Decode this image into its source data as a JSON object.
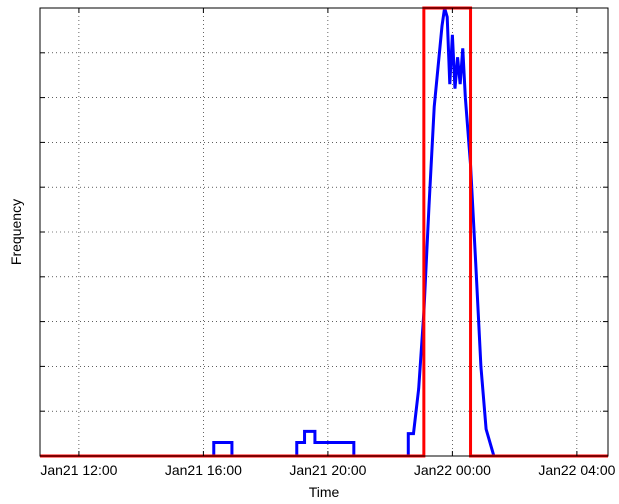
{
  "chart_data": {
    "type": "line",
    "title": "",
    "xlabel": "Time",
    "ylabel": "Frequency",
    "x_axis": {
      "ticks": [
        {
          "t": "2015-01-21T12:00",
          "label": "Jan21 12:00"
        },
        {
          "t": "2015-01-21T16:00",
          "label": "Jan21 16:00"
        },
        {
          "t": "2015-01-21T20:00",
          "label": "Jan21 20:00"
        },
        {
          "t": "2015-01-22T00:00",
          "label": "Jan22 00:00"
        },
        {
          "t": "2015-01-22T04:00",
          "label": "Jan22 04:00"
        }
      ],
      "range": [
        "2015-01-21T10:45",
        "2015-01-22T05:00"
      ]
    },
    "y_axis": {
      "range": [
        0,
        10
      ],
      "grid_levels": [
        1,
        2,
        3,
        4,
        5,
        6,
        7,
        8,
        9
      ],
      "tick_labels_shown": false
    },
    "grid": true,
    "series": [
      {
        "color": "#0000ff",
        "points": [
          {
            "t": "2015-01-21T10:45",
            "y": 0
          },
          {
            "t": "2015-01-21T16:20",
            "y": 0
          },
          {
            "t": "2015-01-21T16:20",
            "y": 0.3
          },
          {
            "t": "2015-01-21T16:55",
            "y": 0.3
          },
          {
            "t": "2015-01-21T16:55",
            "y": 0
          },
          {
            "t": "2015-01-21T19:00",
            "y": 0
          },
          {
            "t": "2015-01-21T19:00",
            "y": 0.3
          },
          {
            "t": "2015-01-21T19:15",
            "y": 0.3
          },
          {
            "t": "2015-01-21T19:15",
            "y": 0.55
          },
          {
            "t": "2015-01-21T19:35",
            "y": 0.55
          },
          {
            "t": "2015-01-21T19:35",
            "y": 0.3
          },
          {
            "t": "2015-01-21T20:50",
            "y": 0.3
          },
          {
            "t": "2015-01-21T20:50",
            "y": 0
          },
          {
            "t": "2015-01-21T22:35",
            "y": 0
          },
          {
            "t": "2015-01-21T22:35",
            "y": 0.5
          },
          {
            "t": "2015-01-21T22:45",
            "y": 0.5
          },
          {
            "t": "2015-01-21T22:55",
            "y": 1.5
          },
          {
            "t": "2015-01-21T23:05",
            "y": 3.2
          },
          {
            "t": "2015-01-21T23:15",
            "y": 5.6
          },
          {
            "t": "2015-01-21T23:25",
            "y": 7.8
          },
          {
            "t": "2015-01-21T23:35",
            "y": 9.0
          },
          {
            "t": "2015-01-21T23:40",
            "y": 9.6
          },
          {
            "t": "2015-01-21T23:45",
            "y": 10.0
          },
          {
            "t": "2015-01-21T23:50",
            "y": 9.8
          },
          {
            "t": "2015-01-21T23:55",
            "y": 8.3
          },
          {
            "t": "2015-01-22T00:00",
            "y": 9.4
          },
          {
            "t": "2015-01-22T00:05",
            "y": 8.2
          },
          {
            "t": "2015-01-22T00:10",
            "y": 8.9
          },
          {
            "t": "2015-01-22T00:15",
            "y": 8.3
          },
          {
            "t": "2015-01-22T00:20",
            "y": 9.1
          },
          {
            "t": "2015-01-22T00:25",
            "y": 8.0
          },
          {
            "t": "2015-01-22T00:35",
            "y": 6.5
          },
          {
            "t": "2015-01-22T00:45",
            "y": 4.3
          },
          {
            "t": "2015-01-22T00:55",
            "y": 2.0
          },
          {
            "t": "2015-01-22T01:05",
            "y": 0.6
          },
          {
            "t": "2015-01-22T01:15",
            "y": 0.2
          },
          {
            "t": "2015-01-22T01:20",
            "y": 0
          },
          {
            "t": "2015-01-22T05:00",
            "y": 0
          }
        ]
      },
      {
        "color": "#ff0000",
        "points": [
          {
            "t": "2015-01-21T10:45",
            "y": 0
          },
          {
            "t": "2015-01-21T23:05",
            "y": 0
          },
          {
            "t": "2015-01-21T23:05",
            "y": 10
          },
          {
            "t": "2015-01-22T00:35",
            "y": 10
          },
          {
            "t": "2015-01-22T00:35",
            "y": 0
          },
          {
            "t": "2015-01-22T05:00",
            "y": 0
          }
        ]
      }
    ]
  }
}
